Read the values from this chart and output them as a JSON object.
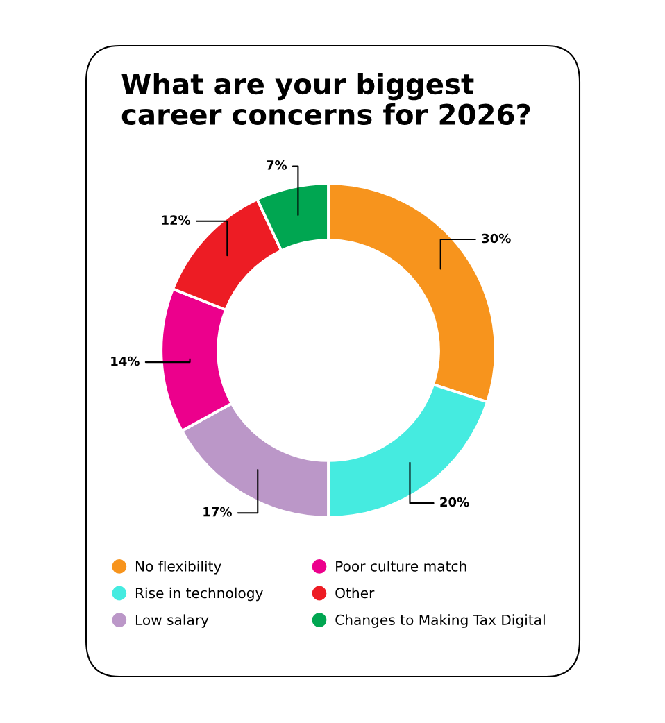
{
  "chart_data": {
    "type": "donut",
    "title": "What are your biggest\ncareer concerns for 2026?",
    "categories": [
      "No flexibility",
      "Rise in technology",
      "Low salary",
      "Poor culture match",
      "Other",
      "Changes to Making Tax Digital"
    ],
    "values": [
      30,
      20,
      17,
      14,
      12,
      7
    ],
    "colors": [
      "#f7941d",
      "#45ebe0",
      "#bb97c8",
      "#ec008c",
      "#ed1c24",
      "#00a651"
    ],
    "value_labels": [
      "30%",
      "20%",
      "17%",
      "14%",
      "12%",
      "7%"
    ],
    "legend": "bottom"
  }
}
